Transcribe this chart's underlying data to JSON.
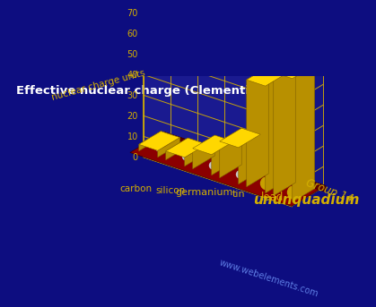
{
  "title": "Effective nuclear charge (Clementi) – 3d",
  "elements": [
    "carbon",
    "silicon",
    "germanium",
    "tin",
    "lead",
    "ununquadium"
  ],
  "values": [
    3.22,
    4.29,
    10.0,
    17.76,
    52.0,
    60.0
  ],
  "ylabel": "nuclear charge units",
  "group_label": "Group 14",
  "website": "www.webelements.com",
  "ylim": [
    0,
    70
  ],
  "yticks": [
    0,
    10,
    20,
    30,
    40,
    50,
    60,
    70
  ],
  "bg_color": "#0d0d80",
  "bar_color_top": "#ffd700",
  "bar_color_side": "#b89000",
  "base_color_top": "#8b0000",
  "base_color_side": "#5a0000",
  "base_dot_color": "#c8c8c8",
  "base_dot_large": "#c8a000",
  "grid_color": "#d4af00",
  "title_color": "#ffffff",
  "label_color": "#d4af00",
  "axis_label_color": "#d4af00",
  "website_color": "#6688ee"
}
